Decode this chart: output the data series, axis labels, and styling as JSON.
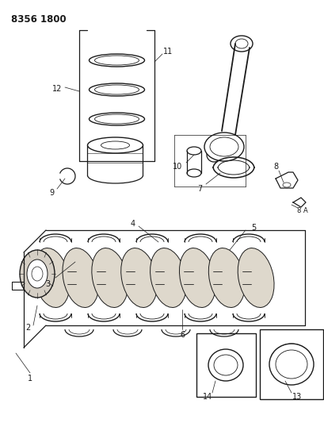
{
  "title_code": "8356 1800",
  "bg_color": "#ffffff",
  "lc": "#1a1a1a",
  "fig_width": 4.1,
  "fig_height": 5.33,
  "dpi": 100
}
